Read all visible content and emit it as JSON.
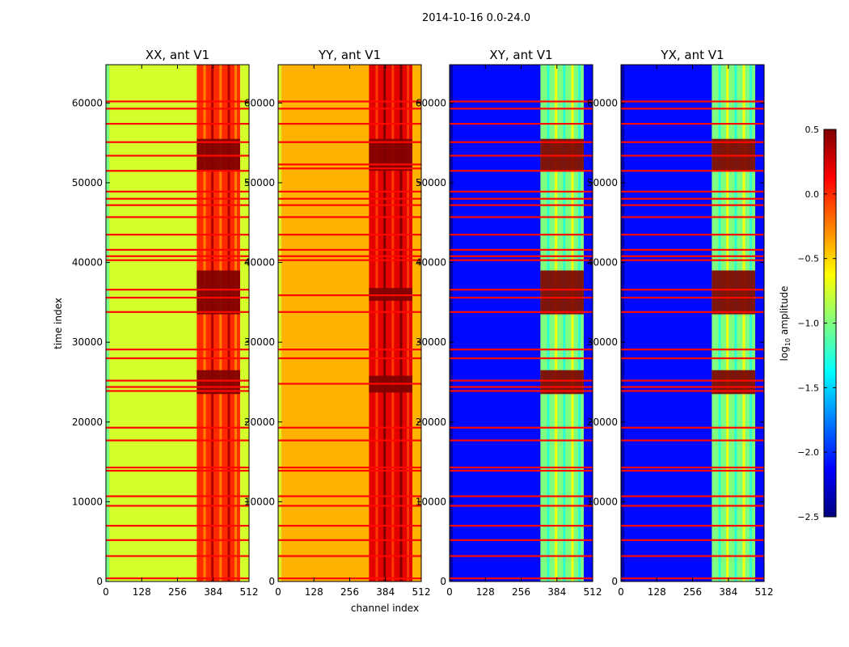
{
  "figure": {
    "suptitle": "2014-10-16 0.0-24.0",
    "xlabel": "channel index",
    "ylabel": "time index"
  },
  "colorbar": {
    "label": "log",
    "label_sub": "10",
    "label_rest": " amplitude",
    "ticks": [
      0.5,
      0.0,
      -0.5,
      -1.0,
      -1.5,
      -2.0,
      -2.5
    ],
    "tick_labels": [
      "0.5",
      "0.0",
      "−0.5",
      "−1.0",
      "−1.5",
      "−2.0",
      "−2.5"
    ],
    "range": [
      -2.5,
      0.5
    ],
    "colormap": "jet",
    "colors": [
      "#00007f",
      "#0000ff",
      "#007fff",
      "#00ffff",
      "#7fff7f",
      "#ffff00",
      "#ff7f00",
      "#ff0000",
      "#7f0000"
    ]
  },
  "chart_data": [
    {
      "type": "heatmap",
      "title": "XX, ant V1",
      "xlabel": "channel index",
      "ylabel": "time index",
      "xlim": [
        0,
        512
      ],
      "ylim": [
        0,
        64800
      ],
      "xticks": [
        0,
        128,
        256,
        384,
        512
      ],
      "yticks": [
        0,
        10000,
        20000,
        30000,
        40000,
        50000,
        60000
      ],
      "background_level": -0.75,
      "rfi_band_channels": [
        325,
        480
      ],
      "rfi_band_level": 0.0,
      "saturated_time_ranges": [
        [
          23500,
          26500
        ],
        [
          33500,
          39000
        ],
        [
          51500,
          55500
        ]
      ],
      "flag_line_times": [
        400,
        3200,
        5200,
        7000,
        9500,
        10700,
        13900,
        14300,
        17700,
        19300,
        23900,
        24400,
        25200,
        28000,
        29100,
        33800,
        35600,
        36600,
        40300,
        40800,
        41600,
        43500,
        45700,
        47200,
        48000,
        48900,
        51500,
        53400,
        55100,
        57400,
        59300,
        60200
      ]
    },
    {
      "type": "heatmap",
      "title": "YY, ant V1",
      "xlabel": "channel index",
      "ylabel": "time index",
      "xlim": [
        0,
        512
      ],
      "ylim": [
        0,
        64800
      ],
      "xticks": [
        0,
        128,
        256,
        384,
        512
      ],
      "yticks": [
        0,
        10000,
        20000,
        30000,
        40000,
        50000,
        60000
      ],
      "background_level": -0.4,
      "rfi_band_channels": [
        325,
        480
      ],
      "rfi_band_level": 0.2,
      "saturated_time_ranges": [
        [
          23700,
          25800
        ],
        [
          35200,
          36800
        ],
        [
          51500,
          55500
        ]
      ],
      "flag_line_times": [
        400,
        3200,
        5200,
        7000,
        9500,
        10700,
        13900,
        14300,
        17700,
        19300,
        24800,
        28000,
        29100,
        33800,
        35900,
        40300,
        40800,
        41600,
        43500,
        45700,
        47200,
        48000,
        48900,
        51800,
        52300,
        55100,
        57400,
        59300,
        60200
      ]
    },
    {
      "type": "heatmap",
      "title": "XY, ant V1",
      "xlabel": "channel index",
      "ylabel": "time index",
      "xlim": [
        0,
        512
      ],
      "ylim": [
        0,
        64800
      ],
      "xticks": [
        0,
        128,
        256,
        384,
        512
      ],
      "yticks": [
        0,
        10000,
        20000,
        30000,
        40000,
        50000,
        60000
      ],
      "background_level": -2.1,
      "rfi_band_channels": [
        325,
        480
      ],
      "rfi_band_level": -1.0,
      "saturated_time_ranges": [
        [
          23500,
          26500
        ],
        [
          33500,
          39000
        ],
        [
          51500,
          55500
        ]
      ],
      "flag_line_times": [
        400,
        3200,
        5200,
        7000,
        9500,
        10700,
        13900,
        14300,
        17700,
        19300,
        23900,
        24400,
        25200,
        28000,
        29100,
        33800,
        35600,
        36600,
        40300,
        40800,
        41600,
        43500,
        45700,
        47200,
        48000,
        48900,
        51500,
        53400,
        55100,
        57400,
        59300,
        60200
      ]
    },
    {
      "type": "heatmap",
      "title": "YX, ant V1",
      "xlabel": "channel index",
      "ylabel": "time index",
      "xlim": [
        0,
        512
      ],
      "ylim": [
        0,
        64800
      ],
      "xticks": [
        0,
        128,
        256,
        384,
        512
      ],
      "yticks": [
        0,
        10000,
        20000,
        30000,
        40000,
        50000,
        60000
      ],
      "background_level": -2.1,
      "rfi_band_channels": [
        325,
        480
      ],
      "rfi_band_level": -1.0,
      "saturated_time_ranges": [
        [
          23500,
          26500
        ],
        [
          33500,
          39000
        ],
        [
          51500,
          55500
        ]
      ],
      "flag_line_times": [
        400,
        3200,
        5200,
        7000,
        9500,
        10700,
        13900,
        14300,
        17700,
        19300,
        23900,
        24400,
        25200,
        28000,
        29100,
        33800,
        35600,
        36600,
        40300,
        40800,
        41600,
        43500,
        45700,
        47200,
        48000,
        48900,
        51500,
        53400,
        55100,
        57400,
        59300,
        60200
      ]
    }
  ]
}
